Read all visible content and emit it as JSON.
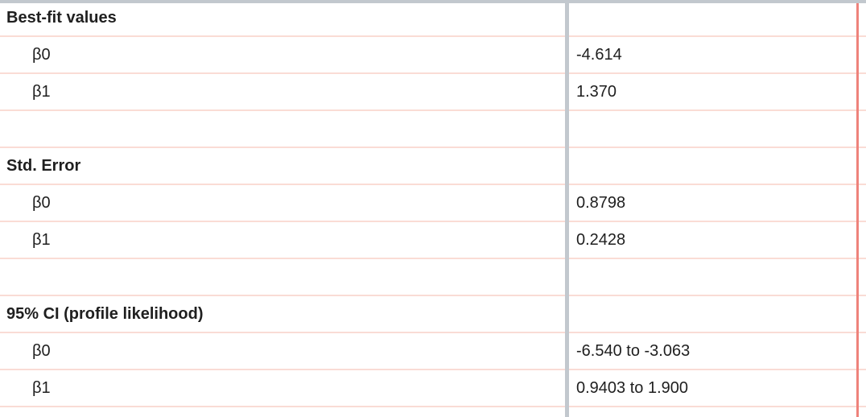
{
  "table": {
    "kind": "regression-results",
    "rows": [
      {
        "type": "section-header",
        "label": "Best-fit values",
        "value": ""
      },
      {
        "type": "param",
        "label": "β0",
        "value": "-4.614"
      },
      {
        "type": "param",
        "label": "β1",
        "value": "1.370"
      },
      {
        "type": "empty",
        "label": "",
        "value": ""
      },
      {
        "type": "section-header",
        "label": "Std. Error",
        "value": ""
      },
      {
        "type": "param",
        "label": "β0",
        "value": "0.8798"
      },
      {
        "type": "param",
        "label": "β1",
        "value": "0.2428"
      },
      {
        "type": "empty",
        "label": "",
        "value": ""
      },
      {
        "type": "section-header",
        "label": "95% CI (profile likelihood)",
        "value": ""
      },
      {
        "type": "param",
        "label": "β0",
        "value": "-6.540 to -3.063"
      },
      {
        "type": "param",
        "label": "β1",
        "value": "0.9403 to 1.900"
      }
    ]
  },
  "colors": {
    "background": "#ffffff",
    "text": "#1f1f1f",
    "row_line": "#fadcd5",
    "gray_line": "#c2c8ce",
    "accent_line": "#ee827b"
  }
}
